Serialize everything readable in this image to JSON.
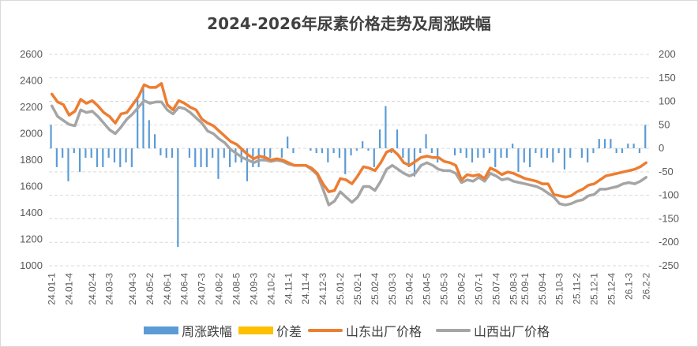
{
  "chart_data": {
    "type": "combo",
    "title": "2024-2026年尿素价格走势及周涨跌幅",
    "categories": [
      "24.01-1",
      "24.01-2",
      "24.01-3",
      "24.01-4",
      "24.02-1",
      "24.02-2",
      "24.02-3",
      "24.02-4",
      "24.03-1",
      "24.03-2",
      "24.03-3",
      "24.03-4",
      "24.04-1",
      "24.04-2",
      "24.04-3",
      "24.04-4",
      "24.05-1",
      "24.05-2",
      "24.05-3",
      "24.05-4",
      "24.06-1",
      "24.06-2",
      "24.06-3",
      "24.06-4",
      "24.07-1",
      "24.07-2",
      "24.07-3",
      "24.07-4",
      "24.08-1",
      "24.08-2",
      "24.08-3",
      "24.08-4",
      "24.08-5",
      "24.09-1",
      "24.09-2",
      "24.09-3",
      "24.09-4",
      "24.10-1",
      "24.10-2",
      "24.10-3",
      "24.10-4",
      "24.11-1",
      "24.11-2",
      "24.11-3",
      "24.11-4",
      "24.12-1",
      "24.12-2",
      "24.12-3",
      "24.12-4",
      "25.01-1",
      "25.01-2",
      "25.01-3",
      "25.01-4",
      "25.02-1",
      "25.02-2",
      "25.02-3",
      "25.02-4",
      "25.03-1",
      "25.03-2",
      "25.03-3",
      "25.03-4",
      "25.04-1",
      "25.04-2",
      "25.04-3",
      "25.04-4",
      "25.04-5",
      "25.05-1",
      "25.05-2",
      "25.05-3",
      "25.05-4",
      "25.06-1",
      "25.06-2",
      "25.06-3",
      "25.06-4",
      "25.07-1",
      "25.07-2",
      "25.07-3",
      "25.07-4",
      "25.08-1",
      "25.08-2",
      "25.08-3",
      "25.08-4",
      "25.09-1",
      "25.09-2",
      "25.09-3",
      "25.09-4",
      "25.10-1",
      "25.10-2",
      "25.10-3",
      "25.10-4",
      "25.11-1",
      "25.11-2",
      "25.11-3",
      "25.11-4",
      "25.12-1",
      "25.12-2",
      "25.12-3",
      "25.12-4",
      "26.1-1",
      "26.1-2",
      "26.1-3",
      "26.1-4",
      "26.2-1",
      "26.2-2"
    ],
    "x_tick_labels": [
      "24.01-1",
      "24.01-4",
      "24.02-4",
      "24.03-3",
      "24.04-3",
      "24.05-2",
      "24.06-1",
      "24.06-4",
      "24.07-3",
      "24.08-2",
      "24.08-5",
      "24.09-3",
      "24.10-2",
      "24.11-1",
      "24.11-4",
      "24.12-3",
      "25.01-2",
      "25.02-1",
      "25.02-4",
      "25.03-3",
      "25.04-2",
      "25.04-5",
      "25.05-3",
      "25.06-2",
      "25.07-1",
      "25.07-4",
      "25.08-3",
      "25.09-1",
      "25.09-4",
      "25.10-3",
      "25.11-2",
      "25.12-1",
      "25.12-4",
      "26.1-3",
      "26.2-2"
    ],
    "y_left": {
      "min": 1000,
      "max": 2600,
      "step": 200,
      "ticks": [
        "1000",
        "1200",
        "1400",
        "1600",
        "1800",
        "2000",
        "2200",
        "2400",
        "2600"
      ]
    },
    "y_right": {
      "min": -250,
      "max": 200,
      "step": 50,
      "ticks": [
        "-250",
        "-200",
        "-150",
        "-100",
        "-50",
        "0",
        "50",
        "100",
        "150",
        "200"
      ]
    },
    "series": [
      {
        "name": "周涨跌幅",
        "type": "bar",
        "axis": "right",
        "color": "#5b9bd5",
        "values": [
          50,
          -40,
          -20,
          -70,
          -10,
          -50,
          -20,
          -20,
          -40,
          -40,
          -20,
          -30,
          -40,
          -30,
          -40,
          110,
          130,
          60,
          30,
          -15,
          -20,
          -20,
          -210,
          0,
          -20,
          -40,
          -40,
          -40,
          -20,
          -65,
          -20,
          -40,
          -30,
          -30,
          -70,
          -40,
          -40,
          -25,
          -20,
          0,
          -20,
          25,
          -10,
          0,
          0,
          -5,
          -10,
          -10,
          -30,
          -10,
          -20,
          -55,
          -15,
          -5,
          15,
          -5,
          -40,
          40,
          90,
          -10,
          40,
          -20,
          -40,
          -60,
          -10,
          30,
          -10,
          -30,
          0,
          0,
          -15,
          -10,
          -20,
          -30,
          -20,
          -20,
          -10,
          -40,
          -20,
          -20,
          10,
          -50,
          -30,
          -40,
          -10,
          -20,
          -20,
          -30,
          -10,
          -45,
          -20,
          0,
          -20,
          -30,
          -10,
          20,
          20,
          20,
          -10,
          -10,
          10,
          10,
          -10,
          50
        ],
        "note": "approximate weekly change; right axis"
      },
      {
        "name": "价差",
        "type": "bar",
        "axis": "right",
        "color": "#ffc000",
        "values": [
          0,
          0,
          0,
          0,
          0,
          0,
          0,
          0,
          0,
          0,
          0,
          0,
          0,
          0,
          0,
          0,
          0,
          0,
          0,
          0,
          0,
          0,
          0,
          0,
          0,
          0,
          0,
          0,
          0,
          0,
          0,
          0,
          0,
          0,
          0,
          0,
          0,
          0,
          0,
          0,
          0,
          0,
          0,
          0,
          0,
          0,
          0,
          0,
          0,
          0,
          0,
          0,
          0,
          0,
          0,
          0,
          0,
          0,
          0,
          0,
          0,
          0,
          0,
          0,
          0,
          0,
          0,
          0,
          0,
          0,
          0,
          0,
          0,
          0,
          0,
          0,
          0,
          0,
          0,
          0,
          0,
          0,
          0,
          0,
          0,
          0,
          0,
          0,
          0,
          0,
          0,
          0,
          0,
          0,
          0,
          0,
          0,
          0,
          0,
          0,
          0,
          0,
          0,
          0
        ],
        "note": "spread between Shandong and Shanxi ex-factory prices"
      },
      {
        "name": "山东出厂价格",
        "type": "line",
        "axis": "left",
        "color": "#ed7d31",
        "values": [
          2300,
          2240,
          2220,
          2140,
          2170,
          2260,
          2230,
          2250,
          2210,
          2160,
          2130,
          2080,
          2150,
          2160,
          2220,
          2280,
          2370,
          2350,
          2350,
          2380,
          2220,
          2180,
          2250,
          2230,
          2200,
          2180,
          2110,
          2080,
          2060,
          2020,
          1980,
          1940,
          1920,
          1880,
          1840,
          1810,
          1830,
          1820,
          1800,
          1810,
          1800,
          1780,
          1760,
          1760,
          1760,
          1740,
          1700,
          1620,
          1560,
          1570,
          1660,
          1650,
          1620,
          1680,
          1750,
          1740,
          1720,
          1780,
          1860,
          1880,
          1840,
          1780,
          1760,
          1790,
          1820,
          1830,
          1820,
          1820,
          1790,
          1780,
          1760,
          1650,
          1690,
          1680,
          1690,
          1660,
          1740,
          1720,
          1690,
          1710,
          1700,
          1680,
          1660,
          1650,
          1640,
          1620,
          1620,
          1540,
          1530,
          1520,
          1530,
          1560,
          1580,
          1610,
          1620,
          1650,
          1680,
          1690,
          1700,
          1710,
          1720,
          1730,
          1750,
          1780
        ],
        "note": "approximate; left axis"
      },
      {
        "name": "山西出厂价格",
        "type": "line",
        "axis": "left",
        "color": "#a5a5a5",
        "values": [
          2210,
          2130,
          2100,
          2070,
          2060,
          2180,
          2160,
          2170,
          2130,
          2080,
          2030,
          2000,
          2050,
          2110,
          2150,
          2200,
          2250,
          2230,
          2240,
          2240,
          2180,
          2150,
          2200,
          2190,
          2160,
          2120,
          2080,
          2020,
          2000,
          1960,
          1930,
          1880,
          1850,
          1820,
          1800,
          1780,
          1800,
          1800,
          1790,
          1800,
          1790,
          1770,
          1760,
          1760,
          1760,
          1730,
          1690,
          1580,
          1460,
          1490,
          1560,
          1520,
          1480,
          1520,
          1600,
          1600,
          1570,
          1640,
          1730,
          1760,
          1730,
          1700,
          1680,
          1700,
          1760,
          1780,
          1760,
          1730,
          1720,
          1720,
          1700,
          1630,
          1650,
          1640,
          1670,
          1640,
          1700,
          1680,
          1650,
          1660,
          1640,
          1630,
          1620,
          1610,
          1600,
          1580,
          1550,
          1520,
          1470,
          1460,
          1470,
          1490,
          1500,
          1530,
          1540,
          1580,
          1580,
          1590,
          1600,
          1620,
          1630,
          1620,
          1640,
          1670
        ],
        "note": "approximate; left axis"
      }
    ],
    "gridlines": "horizontal dashed at right-axis ticks",
    "legend_position": "bottom"
  }
}
